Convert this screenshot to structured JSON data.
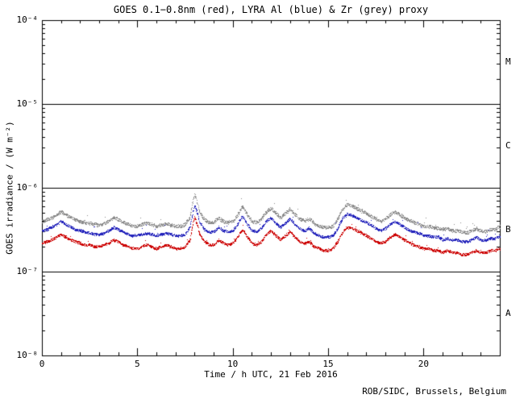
{
  "chart_data": {
    "type": "scatter",
    "title": "GOES 0.1−0.8nm (red), LYRA Al (blue) & Zr (grey) proxy",
    "xlabel": "Time / h UTC, 21 Feb 2016",
    "ylabel": "GOES irradiance / (W m⁻²)",
    "credit": "ROB/SIDC, Brussels, Belgium",
    "x_range_hours": [
      0,
      24
    ],
    "x_major_ticks": [
      0,
      5,
      10,
      15,
      20
    ],
    "x_major_tick_labels": [
      "0",
      "5",
      "10",
      "15",
      "20"
    ],
    "x_minor_step_hours": 1,
    "y_scale": "log",
    "y_log_range_exponents": [
      -8,
      -4
    ],
    "y_tick_exponents": [
      -4,
      -5,
      -6,
      -7,
      -8
    ],
    "y_tick_labels": [
      "10⁻⁴",
      "10⁻⁵",
      "10⁻⁶",
      "10⁻⁷",
      "10⁻⁸"
    ],
    "class_boundary_lines_wm2": [
      1e-05,
      1e-06,
      1e-07
    ],
    "flare_class_labels": [
      {
        "label": "M",
        "between_exponents": [
          -5,
          -4
        ]
      },
      {
        "label": "C",
        "between_exponents": [
          -6,
          -5
        ]
      },
      {
        "label": "B",
        "between_exponents": [
          -7,
          -6
        ]
      },
      {
        "label": "A",
        "between_exponents": [
          -8,
          -7
        ]
      }
    ],
    "grid": "class-boundaries-only",
    "legend": "encoded-in-title",
    "sample_step_hours": 0.25,
    "values_scale": 1e-07,
    "values_unit": "×10⁻⁷ W m⁻²",
    "series": [
      {
        "name": "GOES 0.1-0.8nm",
        "color_name": "red",
        "color": "#cc0000",
        "values": [
          2.2,
          2.3,
          2.4,
          2.6,
          2.8,
          2.6,
          2.4,
          2.3,
          2.2,
          2.1,
          2.1,
          2.0,
          2.0,
          2.1,
          2.2,
          2.4,
          2.3,
          2.1,
          2.0,
          1.9,
          1.9,
          2.0,
          2.1,
          2.0,
          1.9,
          2.0,
          2.1,
          2.0,
          1.9,
          1.9,
          2.0,
          2.4,
          4.5,
          2.8,
          2.3,
          2.1,
          2.1,
          2.4,
          2.2,
          2.1,
          2.2,
          2.6,
          3.2,
          2.6,
          2.2,
          2.1,
          2.3,
          2.8,
          3.1,
          2.7,
          2.4,
          2.7,
          3.0,
          2.6,
          2.3,
          2.2,
          2.3,
          2.0,
          1.9,
          1.8,
          1.8,
          1.9,
          2.3,
          3.0,
          3.4,
          3.3,
          3.1,
          2.9,
          2.7,
          2.5,
          2.3,
          2.2,
          2.3,
          2.6,
          2.8,
          2.6,
          2.4,
          2.2,
          2.1,
          2.0,
          1.9,
          1.9,
          1.8,
          1.8,
          1.7,
          1.8,
          1.7,
          1.7,
          1.6,
          1.6,
          1.7,
          1.8,
          1.7,
          1.7,
          1.8,
          1.8,
          1.9
        ]
      },
      {
        "name": "LYRA Al proxy",
        "color_name": "blue",
        "color": "#2222bb",
        "values": [
          3.1,
          3.2,
          3.4,
          3.7,
          4.0,
          3.7,
          3.4,
          3.2,
          3.1,
          3.0,
          2.9,
          2.8,
          2.8,
          2.9,
          3.1,
          3.4,
          3.2,
          3.0,
          2.8,
          2.7,
          2.7,
          2.8,
          2.9,
          2.8,
          2.7,
          2.8,
          2.9,
          2.8,
          2.7,
          2.7,
          2.8,
          3.4,
          6.2,
          3.9,
          3.2,
          3.0,
          3.0,
          3.4,
          3.1,
          3.0,
          3.1,
          3.7,
          4.6,
          3.7,
          3.1,
          3.0,
          3.3,
          4.0,
          4.4,
          3.8,
          3.4,
          3.8,
          4.3,
          3.7,
          3.3,
          3.1,
          3.3,
          2.9,
          2.7,
          2.6,
          2.6,
          2.7,
          3.3,
          4.3,
          4.9,
          4.7,
          4.4,
          4.1,
          3.9,
          3.6,
          3.3,
          3.1,
          3.3,
          3.7,
          4.0,
          3.7,
          3.4,
          3.1,
          3.0,
          2.9,
          2.7,
          2.7,
          2.6,
          2.6,
          2.4,
          2.5,
          2.4,
          2.4,
          2.3,
          2.3,
          2.4,
          2.6,
          2.4,
          2.4,
          2.5,
          2.5,
          2.7
        ]
      },
      {
        "name": "LYRA Zr proxy",
        "color_name": "grey",
        "color": "#8a8a8a",
        "values": [
          4.0,
          4.2,
          4.4,
          4.8,
          5.2,
          4.8,
          4.4,
          4.2,
          4.0,
          3.9,
          3.8,
          3.7,
          3.6,
          3.8,
          4.0,
          4.5,
          4.2,
          3.9,
          3.7,
          3.5,
          3.5,
          3.7,
          3.8,
          3.7,
          3.5,
          3.6,
          3.8,
          3.6,
          3.5,
          3.5,
          3.7,
          4.5,
          8.5,
          5.1,
          4.2,
          3.9,
          3.9,
          4.4,
          4.0,
          3.9,
          4.0,
          4.8,
          6.0,
          4.8,
          4.0,
          3.9,
          4.3,
          5.2,
          5.7,
          5.0,
          4.4,
          5.0,
          5.6,
          4.8,
          4.3,
          4.1,
          4.3,
          3.8,
          3.5,
          3.4,
          3.4,
          3.5,
          4.3,
          5.6,
          6.4,
          6.1,
          5.7,
          5.3,
          5.0,
          4.6,
          4.3,
          4.0,
          4.3,
          4.8,
          5.2,
          4.8,
          4.4,
          4.1,
          3.9,
          3.7,
          3.5,
          3.5,
          3.4,
          3.3,
          3.2,
          3.3,
          3.1,
          3.1,
          3.0,
          2.9,
          3.1,
          3.3,
          3.1,
          3.0,
          3.2,
          3.2,
          3.5
        ]
      }
    ]
  }
}
